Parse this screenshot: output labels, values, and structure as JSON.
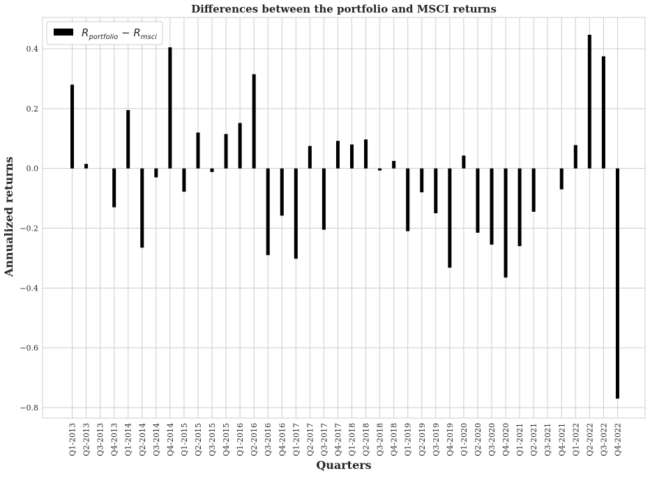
{
  "chart_data": {
    "type": "bar",
    "title": "Differences between the portfolio and MSCI returns",
    "xlabel": "Quarters",
    "ylabel": "Annualized returns",
    "ylim": [
      -0.835,
      0.505
    ],
    "yticks": [
      -0.8,
      -0.6,
      -0.4,
      -0.2,
      0.0,
      0.2,
      0.4
    ],
    "ytick_labels": [
      "−0.8",
      "−0.6",
      "−0.4",
      "−0.2",
      "0.0",
      "0.2",
      "0.4"
    ],
    "grid": true,
    "legend_position": "top-left",
    "categories": [
      "Q1-2013",
      "Q2-2013",
      "Q3-2013",
      "Q4-2013",
      "Q1-2014",
      "Q2-2014",
      "Q3-2014",
      "Q4-2014",
      "Q1-2015",
      "Q2-2015",
      "Q3-2015",
      "Q4-2015",
      "Q1-2016",
      "Q2-2016",
      "Q3-2016",
      "Q4-2016",
      "Q1-2017",
      "Q2-2017",
      "Q3-2017",
      "Q4-2017",
      "Q1-2018",
      "Q2-2018",
      "Q3-2018",
      "Q4-2018",
      "Q1-2019",
      "Q2-2019",
      "Q3-2019",
      "Q4-2019",
      "Q1-2020",
      "Q2-2020",
      "Q3-2020",
      "Q4-2020",
      "Q1-2021",
      "Q2-2021",
      "Q3-2021",
      "Q4-2021",
      "Q1-2022",
      "Q2-2022",
      "Q3-2022",
      "Q4-2022"
    ],
    "series": [
      {
        "name": "R_portfolio − R_msci",
        "color": "#000000",
        "values": [
          0.28,
          0.015,
          0.0,
          -0.13,
          0.195,
          -0.265,
          -0.03,
          0.405,
          -0.078,
          0.12,
          -0.012,
          0.115,
          0.152,
          0.315,
          -0.29,
          -0.158,
          -0.302,
          0.075,
          -0.205,
          0.092,
          0.08,
          0.097,
          -0.007,
          0.025,
          -0.21,
          -0.08,
          -0.15,
          -0.332,
          0.043,
          -0.215,
          -0.255,
          -0.365,
          -0.26,
          -0.145,
          0.0,
          -0.07,
          0.078,
          0.447,
          0.375,
          -0.77
        ]
      }
    ]
  },
  "colors": {
    "grid": "#cccccc",
    "spine": "#cccccc",
    "bar": "#000000"
  }
}
